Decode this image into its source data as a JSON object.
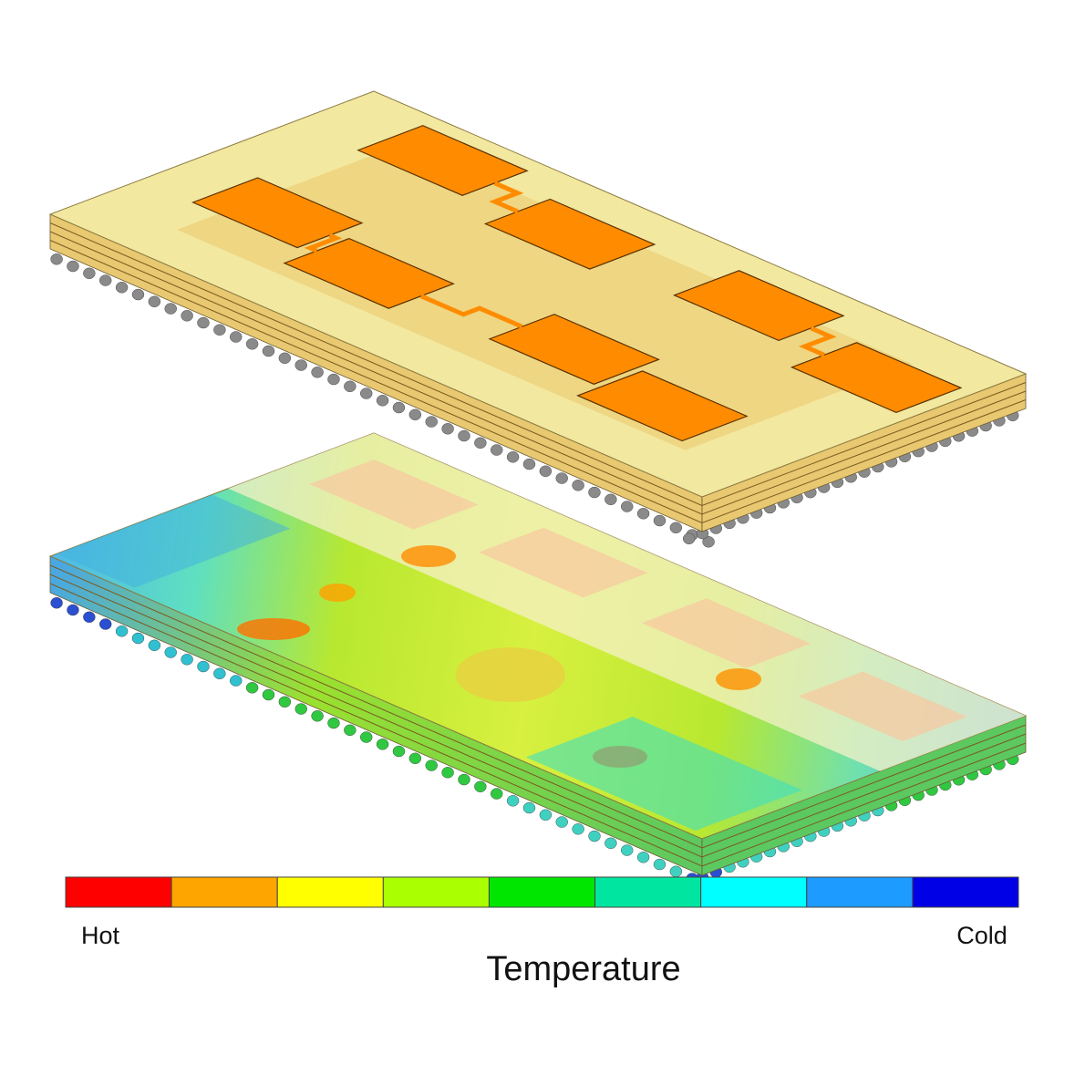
{
  "legend": {
    "title": "Temperature",
    "hot_label": "Hot",
    "cold_label": "Cold",
    "colors": [
      "#ff0000",
      "#ffa500",
      "#ffff00",
      "#aaff00",
      "#00e600",
      "#00e6a0",
      "#00ffff",
      "#1e9bff",
      "#0000e6"
    ]
  }
}
